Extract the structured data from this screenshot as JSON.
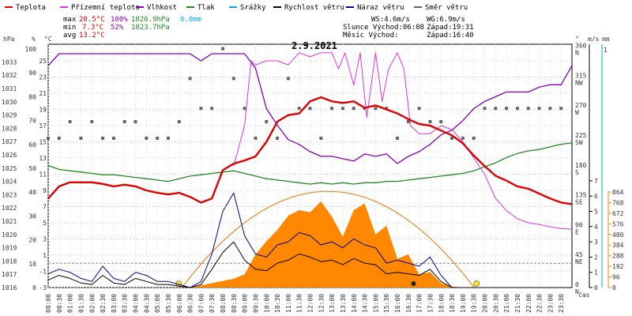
{
  "legend": [
    {
      "label": "Teplota",
      "color": "#dd0000"
    },
    {
      "label": "Přízemní teplota",
      "color": "#dd33dd"
    },
    {
      "label": "Vlhkost",
      "color": "#8800bb"
    },
    {
      "label": "Tlak",
      "color": "#228822"
    },
    {
      "label": "Srážky",
      "color": "#00aadd"
    },
    {
      "label": "Rychlost větru",
      "color": "#000000"
    },
    {
      "label": "Náraz větru",
      "color": "#000088"
    },
    {
      "label": "Směr větru",
      "color": "#666666"
    }
  ],
  "stats": {
    "max_label": "max",
    "max_temp": "20.5°C",
    "max_hum": "100%",
    "max_press": "1026.9hPa",
    "max_rain": "0.0mm",
    "min_label": "min",
    "min_temp": "7.3°C",
    "min_hum": "52%",
    "min_press": "1023.7hPa",
    "avg_label": "avg",
    "avg_temp": "13.2°C"
  },
  "wind": {
    "ws": "WS:4.6m/s",
    "wg": "WG:6.9m/s"
  },
  "sun": {
    "sunrise": "Slunce Východ:06:08",
    "sunset": "Západ:19:31"
  },
  "moon": {
    "rise": "Měsíc  Východ:",
    "set": "Západ:16:40"
  },
  "date": "2.9.2021",
  "colors": {
    "temp": "#dd0000",
    "ground": "#dd33dd",
    "hum": "#8800bb",
    "press": "#228822",
    "rain": "#00aadd",
    "wind": "#000000",
    "gust": "#000088",
    "dir": "#666666",
    "solar": "#ff8800",
    "sunpath": "#e08a20"
  },
  "chart_data": {
    "type": "line",
    "axes": {
      "hpa": {
        "unit": "hPa",
        "ticks": [
          1016,
          1017,
          1018,
          1019,
          1020,
          1021,
          1022,
          1023,
          1024,
          1025,
          1026,
          1027,
          1028,
          1029,
          1030,
          1031,
          1032,
          1033
        ]
      },
      "percent": {
        "unit": "%",
        "ticks": [
          0,
          10,
          20,
          30,
          40,
          50,
          60,
          70,
          80,
          90,
          100
        ]
      },
      "celsius": {
        "unit": "°C",
        "ticks": [
          -3,
          -1,
          1,
          3,
          5,
          7,
          9,
          11,
          13,
          15,
          17,
          19,
          21,
          23,
          25
        ]
      },
      "degrees": {
        "unit": "°",
        "labels": [
          {
            "v": 360,
            "d": "N"
          },
          {
            "v": 315,
            "d": "NW"
          },
          {
            "v": 270,
            "d": "W"
          },
          {
            "v": 225,
            "d": "SW"
          },
          {
            "v": 180,
            "d": "S"
          },
          {
            "v": 135,
            "d": "SE"
          },
          {
            "v": 90,
            "d": "E"
          },
          {
            "v": 45,
            "d": "NE"
          },
          {
            "v": 0,
            "d": "N"
          }
        ]
      },
      "ms": {
        "unit": "m/s",
        "ticks": [
          0,
          1,
          2,
          3,
          4,
          5,
          6,
          7
        ]
      },
      "mm": {
        "unit": "mm",
        "ticks": [
          1
        ]
      },
      "wm2": {
        "ticks": [
          0,
          96,
          192,
          288,
          384,
          480,
          576,
          672,
          768,
          864
        ]
      },
      "x_label": "čas",
      "x_ticks": [
        "00:00",
        "00:30",
        "01:00",
        "01:30",
        "02:00",
        "02:30",
        "03:00",
        "03:30",
        "04:00",
        "04:30",
        "05:00",
        "05:30",
        "06:00",
        "06:30",
        "07:00",
        "07:30",
        "08:00",
        "08:30",
        "09:00",
        "09:30",
        "10:00",
        "10:30",
        "11:00",
        "11:30",
        "12:00",
        "12:30",
        "13:00",
        "13:30",
        "14:00",
        "14:30",
        "15:00",
        "15:30",
        "16:00",
        "16:30",
        "17:00",
        "17:30",
        "18:00",
        "18:30",
        "19:00",
        "19:30",
        "20:00",
        "20:30",
        "21:00",
        "21:30",
        "22:00",
        "22:30",
        "23:00",
        "23:30"
      ]
    },
    "series": [
      {
        "name": "Teplota",
        "unit": "°C",
        "x": [
          0,
          0.5,
          1,
          1.5,
          2,
          2.5,
          3,
          3.5,
          4,
          4.5,
          5,
          5.5,
          6,
          6.5,
          7,
          7.5,
          8,
          8.5,
          9,
          9.5,
          10,
          10.5,
          11,
          11.5,
          12,
          12.5,
          13,
          13.5,
          14,
          14.5,
          15,
          15.5,
          16,
          16.5,
          17,
          17.5,
          18,
          18.5,
          19,
          19.5,
          20,
          20.5,
          21,
          21.5,
          22,
          22.5,
          23,
          23.5,
          24
        ],
        "y": [
          8,
          9.5,
          10,
          10,
          10,
          9.8,
          9.5,
          9.7,
          9.5,
          9,
          8.7,
          8.5,
          8.7,
          8.2,
          7.5,
          8,
          11.5,
          12.3,
          12.7,
          13.2,
          15,
          17.5,
          18.3,
          18.5,
          20,
          20.5,
          20,
          19.8,
          20,
          19.2,
          19.5,
          19,
          18.5,
          17.8,
          17.2,
          17,
          16.4,
          15.8,
          14.8,
          13.3,
          12,
          10.8,
          10.2,
          9.5,
          9.2,
          8.6,
          8,
          7.5,
          7.3
        ]
      },
      {
        "name": "Přízemní teplota",
        "unit": "°C",
        "x": [
          8.5,
          9,
          9.3,
          9.5,
          10,
          10.5,
          11,
          11.5,
          12,
          12.5,
          13,
          13.3,
          13.6,
          14,
          14.3,
          14.6,
          15,
          15.3,
          15.6,
          16,
          16.3,
          16.6,
          17,
          17.5,
          18,
          18.5,
          19,
          19.5,
          20,
          20.5,
          21,
          21.5,
          22,
          22.5,
          23,
          23.5,
          24
        ],
        "y": [
          12,
          17,
          25,
          24.5,
          25,
          25,
          24.5,
          26,
          25.5,
          26,
          26,
          24,
          26,
          22,
          26,
          18,
          26,
          20,
          24,
          26,
          24,
          17,
          16,
          16,
          17,
          16.5,
          15,
          13,
          11,
          8,
          6.5,
          5.5,
          5,
          4.8,
          4.5,
          4.3,
          4.2
        ]
      },
      {
        "name": "Vlhkost",
        "unit": "%",
        "x": [
          0,
          0.5,
          1,
          1.5,
          2,
          2.5,
          3,
          3.5,
          4,
          4.5,
          5,
          5.5,
          6,
          6.5,
          7,
          7.5,
          8,
          8.5,
          9,
          9.5,
          10,
          10.5,
          11,
          11.5,
          12,
          12.5,
          13,
          13.5,
          14,
          14.5,
          15,
          15.5,
          16,
          16.5,
          17,
          17.5,
          18,
          18.5,
          19,
          19.5,
          20,
          20.5,
          21,
          21.5,
          22,
          22.5,
          23,
          23.5,
          24
        ],
        "y": [
          93,
          98,
          98,
          98,
          98,
          98,
          98,
          98,
          98,
          98,
          98,
          98,
          98,
          98,
          95,
          98,
          98,
          98,
          98,
          92,
          75,
          68,
          62,
          60,
          57,
          55,
          55,
          54,
          53,
          56,
          55,
          56,
          52,
          55,
          57,
          60,
          64,
          66,
          70,
          75,
          78,
          80,
          82,
          82,
          82,
          84,
          85,
          85,
          93
        ]
      },
      {
        "name": "Tlak",
        "unit": "hPa",
        "x": [
          0,
          0.5,
          1,
          1.5,
          2,
          2.5,
          3,
          3.5,
          4,
          4.5,
          5,
          5.5,
          6,
          6.5,
          7,
          7.5,
          8,
          8.5,
          9,
          9.5,
          10,
          10.5,
          11,
          11.5,
          12,
          12.5,
          13,
          13.5,
          14,
          14.5,
          15,
          15.5,
          16,
          16.5,
          17,
          17.5,
          18,
          18.5,
          19,
          19.5,
          20,
          20.5,
          21,
          21.5,
          22,
          22.5,
          23,
          23.5,
          24
        ],
        "y": [
          1025.2,
          1024.9,
          1024.8,
          1024.7,
          1024.6,
          1024.5,
          1024.5,
          1024.4,
          1024.3,
          1024.2,
          1024.1,
          1024.0,
          1024.2,
          1024.4,
          1024.5,
          1024.6,
          1024.7,
          1024.8,
          1024.6,
          1024.4,
          1024.2,
          1024.1,
          1024.0,
          1023.9,
          1023.8,
          1023.9,
          1023.8,
          1023.9,
          1023.8,
          1023.9,
          1023.9,
          1024.0,
          1024.0,
          1024.1,
          1024.2,
          1024.3,
          1024.4,
          1024.5,
          1024.6,
          1024.8,
          1025.1,
          1025.4,
          1025.8,
          1026.1,
          1026.3,
          1026.4,
          1026.6,
          1026.8,
          1026.9
        ]
      },
      {
        "name": "Rychlost větru",
        "unit": "m/s",
        "x": [
          0,
          0.5,
          1,
          1.5,
          2,
          2.5,
          3,
          3.5,
          4,
          4.5,
          5,
          5.5,
          6,
          6.5,
          7,
          7.5,
          8,
          8.5,
          9,
          9.5,
          10,
          10.5,
          11,
          11.5,
          12,
          12.5,
          13,
          13.5,
          14,
          14.5,
          15,
          15.5,
          16,
          16.5,
          17,
          17.5,
          18,
          18.5,
          19,
          19.5,
          20,
          20.5,
          21,
          21.5,
          22,
          22.5,
          23,
          23.5,
          24
        ],
        "y": [
          0.5,
          0.8,
          0.6,
          0.3,
          0.2,
          0.8,
          0.3,
          0.2,
          0.6,
          0.4,
          0.2,
          0.2,
          0.1,
          0,
          0.2,
          1.2,
          2.3,
          3,
          1.8,
          1.2,
          1.1,
          1.6,
          1.8,
          2.2,
          2.0,
          1.7,
          1.8,
          1.5,
          1.9,
          1.6,
          1.5,
          0.9,
          1.0,
          0.9,
          0.8,
          1.2,
          0.4,
          0,
          0,
          0,
          0,
          0,
          0,
          0,
          0,
          0,
          0,
          0,
          0
        ]
      },
      {
        "name": "Náraz větru",
        "unit": "m/s",
        "x": [
          0,
          0.5,
          1,
          1.5,
          2,
          2.5,
          3,
          3.5,
          4,
          4.5,
          5,
          5.5,
          6,
          6.5,
          7,
          7.5,
          8,
          8.5,
          9,
          9.5,
          10,
          10.5,
          11,
          11.5,
          12,
          12.5,
          13,
          13.5,
          14,
          14.5,
          15,
          15.5,
          16,
          16.5,
          17,
          17.5,
          18,
          18.5,
          19,
          19.5,
          20,
          20.5,
          21,
          21.5,
          22,
          22.5,
          23,
          23.5,
          24
        ],
        "y": [
          0.9,
          1.2,
          1.0,
          0.6,
          0.4,
          1.4,
          0.6,
          0.4,
          1.0,
          0.8,
          0.4,
          0.4,
          0.2,
          0,
          0.4,
          2.2,
          5.0,
          6.2,
          3.4,
          2.2,
          2.0,
          2.8,
          3.0,
          3.6,
          3.4,
          2.8,
          3.0,
          2.6,
          3.2,
          2.8,
          2.6,
          1.6,
          1.8,
          1.6,
          1.4,
          2.0,
          0.8,
          0,
          0,
          0,
          0,
          0,
          0,
          0,
          0,
          0,
          0,
          0,
          0
        ]
      },
      {
        "name": "Směr větru",
        "unit": "°",
        "x": [
          0,
          0.5,
          1,
          1.5,
          2,
          2.5,
          3,
          3.5,
          4,
          4.5,
          5,
          5.5,
          6,
          6.5,
          7,
          7.5,
          8,
          8.5,
          9,
          9.5,
          10,
          10.5,
          11,
          11.5,
          12,
          12.5,
          13,
          13.5,
          14,
          14.5,
          15,
          15.5,
          16,
          16.5,
          17,
          17.5,
          18,
          18.5,
          19,
          19.5,
          20,
          20.5,
          21,
          21.5,
          22,
          22.5,
          23,
          23.5
        ],
        "y": [
          225,
          225,
          250,
          225,
          250,
          225,
          225,
          250,
          250,
          225,
          225,
          225,
          250,
          315,
          270,
          270,
          360,
          315,
          270,
          225,
          250,
          225,
          315,
          270,
          270,
          225,
          270,
          270,
          270,
          270,
          270,
          270,
          225,
          250,
          270,
          250,
          250,
          225,
          225,
          225,
          270,
          270,
          270,
          270,
          270,
          270,
          270,
          270
        ]
      },
      {
        "name": "Solar",
        "unit": "W/m²",
        "x": [
          6.5,
          7,
          7.5,
          8,
          8.5,
          9,
          9.5,
          10,
          10.5,
          11,
          11.5,
          12,
          12.5,
          13,
          13.5,
          14,
          14.5,
          15,
          15.5,
          16,
          16.5,
          17,
          17.5,
          18,
          18.5,
          19
        ],
        "y": [
          0,
          20,
          40,
          60,
          80,
          120,
          300,
          420,
          520,
          650,
          700,
          680,
          780,
          640,
          460,
          700,
          760,
          480,
          560,
          260,
          300,
          120,
          140,
          40,
          10,
          0
        ]
      }
    ]
  }
}
